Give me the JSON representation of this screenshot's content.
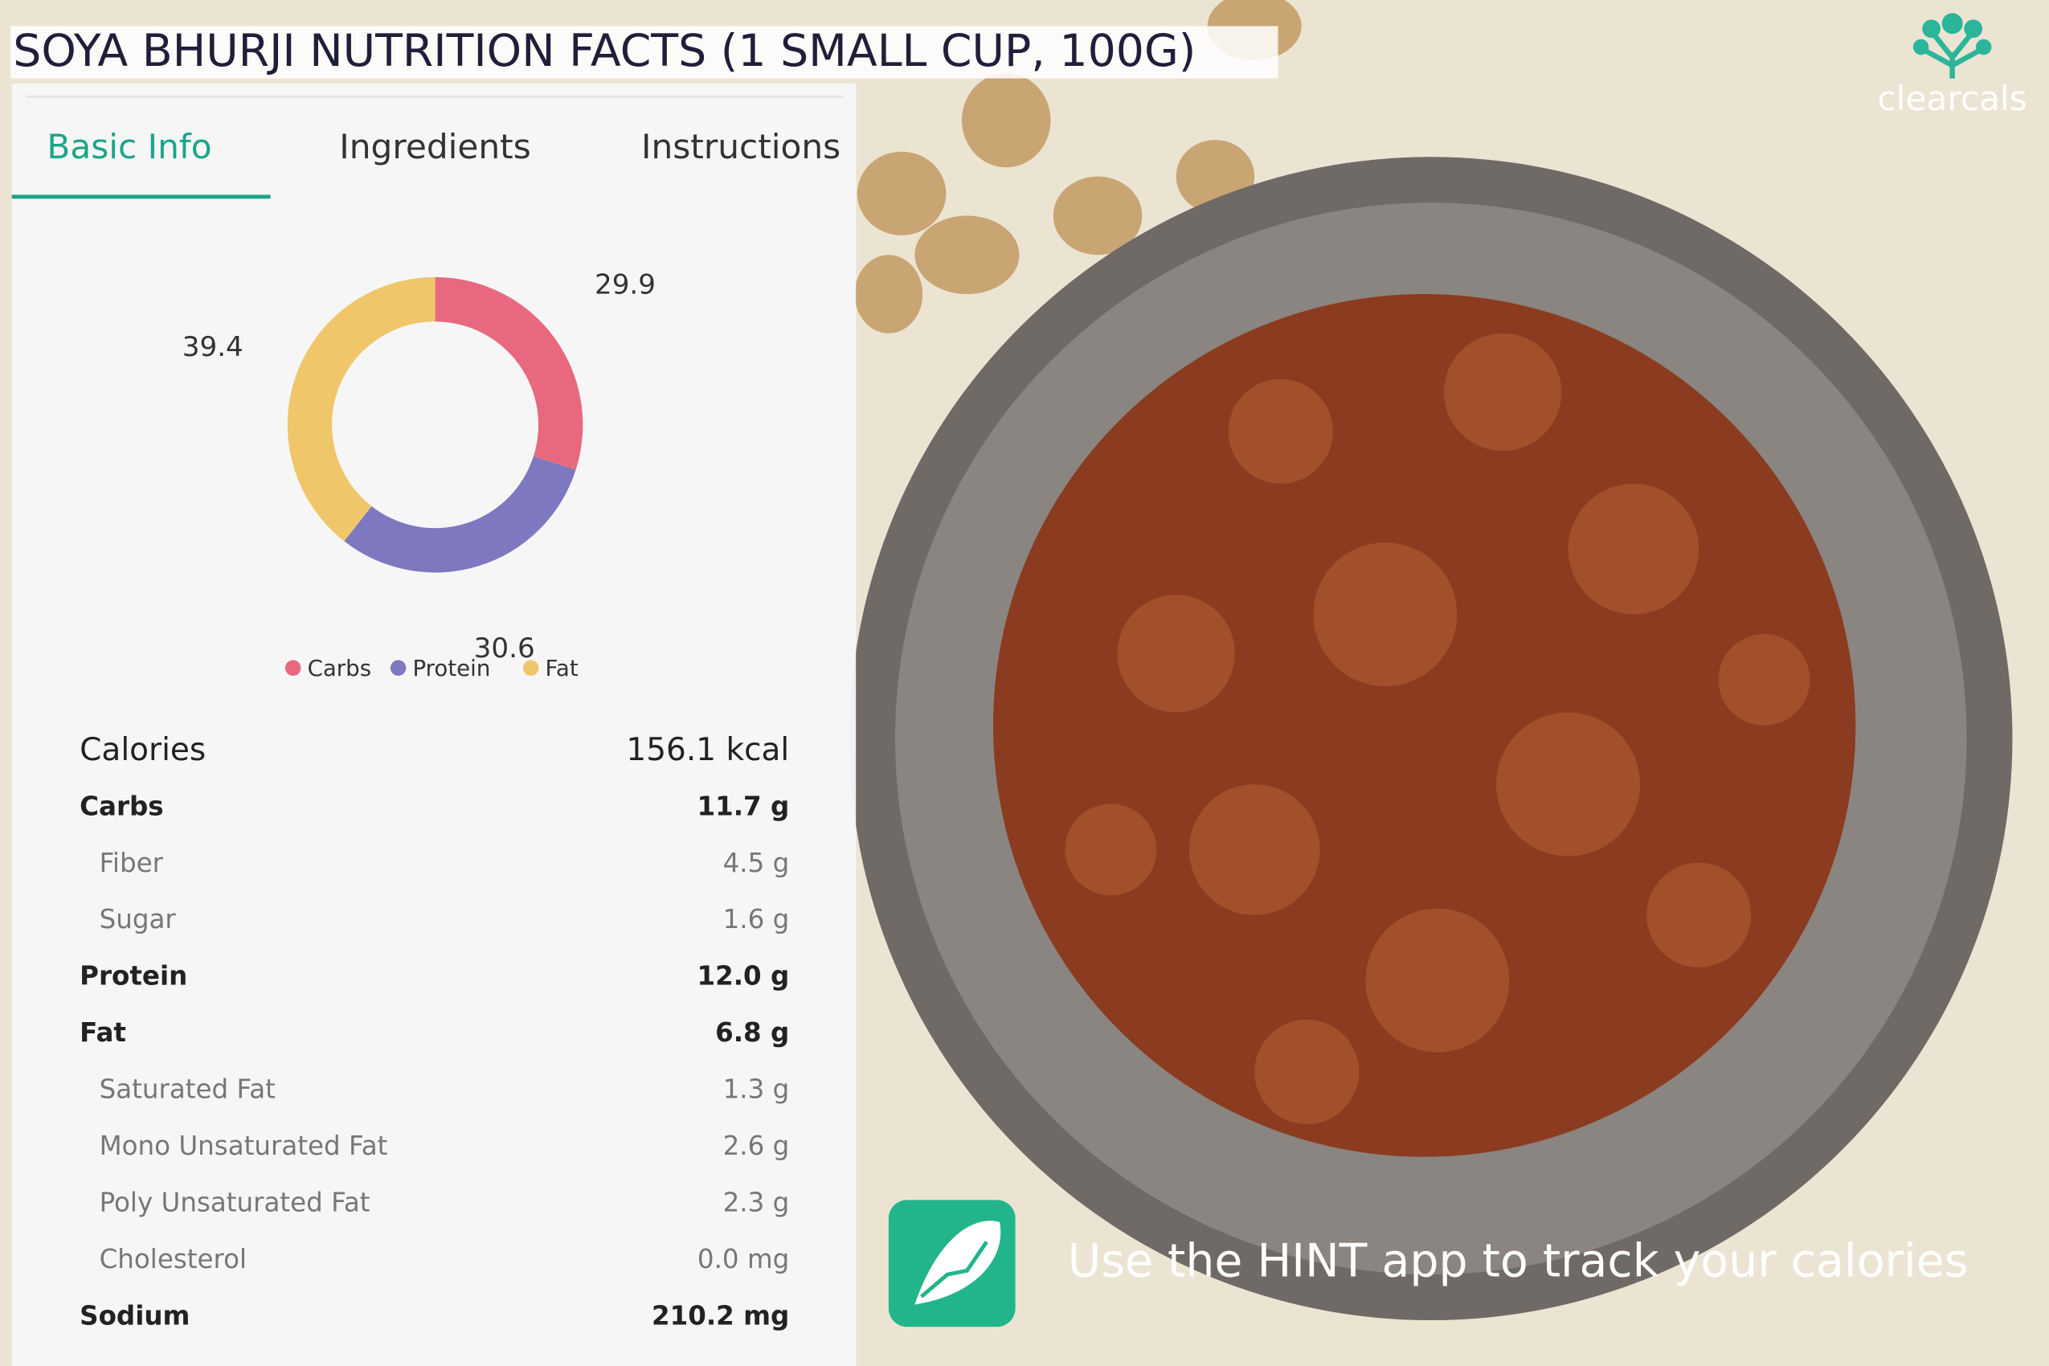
{
  "header": {
    "title": "SOYA BHURJI NUTRITION FACTS (1 SMALL CUP, 100G)",
    "logo": "clearcals"
  },
  "tabs": [
    "Basic Info",
    "Ingredients",
    "Instructions"
  ],
  "chart_data": {
    "type": "donut",
    "categories": [
      "Carbs",
      "Protein",
      "Fat"
    ],
    "values": [
      29.9,
      30.6,
      39.4
    ],
    "colors": [
      "#e8697f",
      "#7e78c0",
      "#efc76a"
    ],
    "legend": "bottom"
  },
  "nutrition": {
    "calories": {
      "label": "Calories",
      "value": "156.1 kcal"
    },
    "rows": [
      {
        "label": "Carbs",
        "value": "11.7 g",
        "items": [
          {
            "label": "Fiber",
            "value": "4.5 g"
          },
          {
            "label": "Sugar",
            "value": "1.6 g"
          }
        ]
      },
      {
        "label": "Protein",
        "value": "12.0 g",
        "items": []
      },
      {
        "label": "Fat",
        "value": "6.8 g",
        "items": [
          {
            "label": "Saturated Fat",
            "value": "1.3 g"
          },
          {
            "label": "Mono Unsaturated Fat",
            "value": "2.6 g"
          },
          {
            "label": "Poly Unsaturated Fat",
            "value": "2.3 g"
          },
          {
            "label": "Cholesterol",
            "value": "0.0 mg"
          }
        ]
      },
      {
        "label": "Sodium",
        "value": "210.2 mg",
        "items": []
      }
    ]
  },
  "promo": {
    "text": "Use the HINT app to track your calories"
  }
}
